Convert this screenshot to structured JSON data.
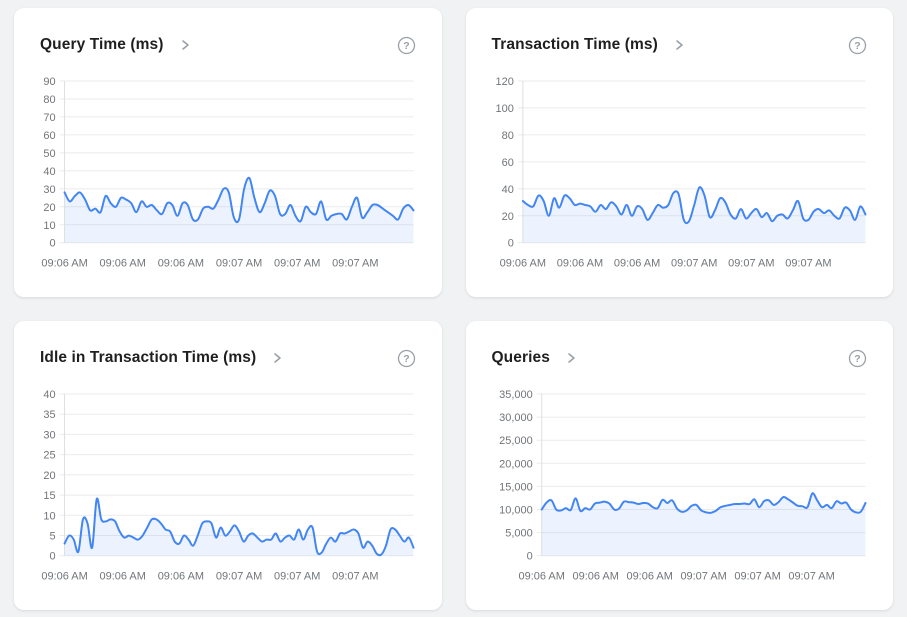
{
  "page": {
    "background": "#f1f2f3"
  },
  "colors": {
    "card_background": "#ffffff",
    "title_text": "#1f1f1f",
    "icon_gray": "#9aa0a6",
    "grid_line": "#ebebeb",
    "axis_line": "#dcdee0",
    "tick_label": "#717579",
    "series_line": "#4285f4",
    "series_fill": "rgba(66,133,244,0.10)"
  },
  "icons": {
    "title_link": "chevron-right-icon",
    "help": "help-circle-icon"
  },
  "chart_data": [
    {
      "type": "area",
      "title": "Query Time (ms)",
      "xlabel": "",
      "ylabel": "",
      "grid": true,
      "legend": false,
      "ylim": [
        0,
        90
      ],
      "y_tick_labels": [
        "0",
        "10",
        "20",
        "30",
        "40",
        "50",
        "60",
        "70",
        "80",
        "90"
      ],
      "x_tick_labels": [
        "09:06 AM",
        "09:06 AM",
        "09:06 AM",
        "09:07 AM",
        "09:07 AM",
        "09:07 AM"
      ],
      "values": [
        28,
        23,
        26,
        28,
        24,
        18,
        19,
        17,
        26,
        22,
        20,
        25,
        24,
        22,
        17,
        23,
        20,
        21,
        18,
        16,
        22,
        21,
        15,
        22,
        21,
        13,
        13,
        19,
        20,
        19,
        24,
        30,
        28,
        14,
        13,
        30,
        36,
        25,
        17,
        22,
        29,
        26,
        16,
        16,
        21,
        15,
        12,
        20,
        17,
        16,
        23,
        13,
        15,
        16,
        16,
        13,
        20,
        25,
        14,
        17,
        21,
        21,
        19,
        17,
        15,
        13,
        19,
        21,
        18
      ]
    },
    {
      "type": "area",
      "title": "Transaction Time (ms)",
      "xlabel": "",
      "ylabel": "",
      "grid": true,
      "legend": false,
      "ylim": [
        0,
        120
      ],
      "y_tick_labels": [
        "0",
        "20",
        "40",
        "60",
        "80",
        "100",
        "120"
      ],
      "x_tick_labels": [
        "09:06 AM",
        "09:06 AM",
        "09:06 AM",
        "09:07 AM",
        "09:07 AM",
        "09:07 AM"
      ],
      "values": [
        31,
        28,
        27,
        35,
        31,
        20,
        33,
        26,
        35,
        33,
        28,
        29,
        28,
        27,
        23,
        28,
        25,
        30,
        27,
        21,
        28,
        20,
        27,
        25,
        17,
        22,
        28,
        26,
        28,
        37,
        36,
        17,
        16,
        28,
        41,
        35,
        19,
        24,
        33,
        30,
        21,
        18,
        25,
        18,
        22,
        25,
        19,
        22,
        16,
        20,
        21,
        18,
        24,
        31,
        18,
        17,
        23,
        25,
        22,
        24,
        20,
        18,
        26,
        24,
        17,
        27,
        21
      ]
    },
    {
      "type": "area",
      "title": "Idle in Transaction Time (ms)",
      "xlabel": "",
      "ylabel": "",
      "grid": true,
      "legend": false,
      "ylim": [
        0,
        40
      ],
      "y_tick_labels": [
        "0",
        "5",
        "10",
        "15",
        "20",
        "25",
        "30",
        "35",
        "40"
      ],
      "x_tick_labels": [
        "09:06 AM",
        "09:06 AM",
        "09:06 AM",
        "09:07 AM",
        "09:07 AM",
        "09:07 AM"
      ],
      "values": [
        3,
        5,
        4,
        1,
        9,
        8,
        2,
        14,
        9,
        8.5,
        9,
        8.5,
        6,
        4.5,
        5,
        4.5,
        4,
        5,
        7,
        9,
        9,
        8,
        6.5,
        6,
        3.5,
        3,
        5,
        4,
        2.5,
        5,
        8,
        8.5,
        8,
        4.5,
        7,
        5,
        6,
        7.5,
        6,
        3.5,
        5,
        5.5,
        4.5,
        3.5,
        4,
        4,
        5.5,
        3.5,
        4.5,
        5,
        4,
        6.5,
        4,
        6.5,
        7,
        1,
        0.8,
        3,
        4.5,
        3.5,
        5.5,
        5.5,
        6,
        6.5,
        5.5,
        2,
        3.5,
        2.5,
        0.5,
        0.3,
        2.5,
        6.5,
        6.5,
        5,
        3.5,
        4.5,
        2
      ]
    },
    {
      "type": "area",
      "title": "Queries",
      "xlabel": "",
      "ylabel": "",
      "grid": true,
      "legend": false,
      "ylim": [
        0,
        35000
      ],
      "y_tick_labels": [
        "0",
        "5,000",
        "10,000",
        "15,000",
        "20,000",
        "25,000",
        "30,000",
        "35,000"
      ],
      "x_tick_labels": [
        "09:06 AM",
        "09:06 AM",
        "09:06 AM",
        "09:07 AM",
        "09:07 AM",
        "09:07 AM"
      ],
      "values": [
        10000,
        11500,
        12000,
        10000,
        9800,
        10300,
        9900,
        12400,
        9700,
        10300,
        10000,
        11300,
        11500,
        11700,
        11300,
        10000,
        10200,
        11700,
        11600,
        11500,
        11200,
        11400,
        11300,
        10500,
        10300,
        12100,
        11400,
        12000,
        10200,
        9500,
        9800,
        10800,
        11000,
        9800,
        9400,
        9300,
        9700,
        10500,
        10800,
        11000,
        11200,
        11200,
        11300,
        11200,
        12200,
        10500,
        11800,
        12000,
        11000,
        11600,
        12700,
        12200,
        11500,
        10800,
        10700,
        10500,
        13500,
        12000,
        10500,
        11000,
        10300,
        11800,
        11300,
        11500,
        10000,
        9400,
        9500,
        11400
      ]
    }
  ]
}
